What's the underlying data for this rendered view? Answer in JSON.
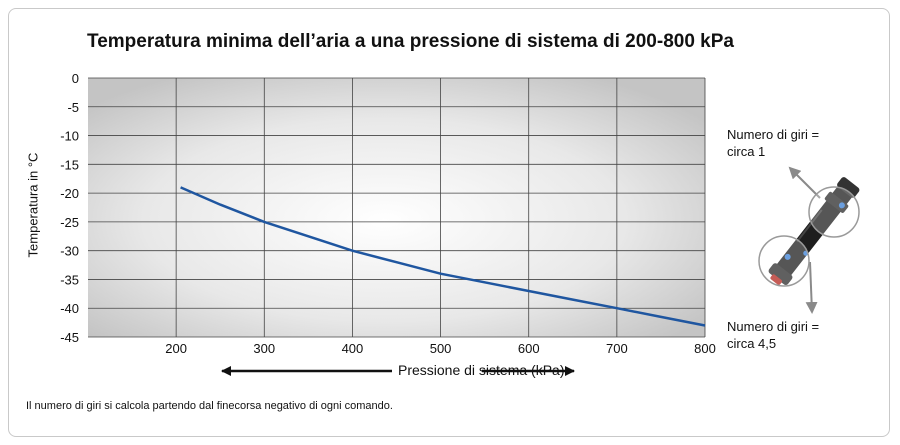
{
  "chart_data": {
    "type": "line",
    "title": "Temperatura minima dell’aria a una pressione di sistema di 200-800 kPa",
    "xlabel": "Pressione di sistema (kPa)",
    "ylabel": "Temperatura in °C",
    "x_ticks": [
      200,
      300,
      400,
      500,
      600,
      700,
      800
    ],
    "y_ticks": [
      0,
      -5,
      -10,
      -15,
      -20,
      -25,
      -30,
      -35,
      -40,
      -45
    ],
    "xlim": [
      100,
      800
    ],
    "ylim": [
      -45,
      0
    ],
    "grid": true,
    "series": [
      {
        "x": [
          205,
          250,
          300,
          360,
          400,
          450,
          500,
          550,
          600,
          650,
          700,
          750,
          800
        ],
        "y": [
          -19,
          -22,
          -25,
          -28,
          -30,
          -32,
          -34,
          -35.5,
          -37,
          -38.5,
          -40,
          -41.5,
          -43
        ]
      }
    ]
  },
  "note": "Il numero di giri si calcola partendo dal finecorsa negativo di ogni comando.",
  "side_labels": {
    "top_line1": "Numero di giri =",
    "top_line2": "circa 1",
    "bottom_line1": "Numero di giri =",
    "bottom_line2": "circa 4,5"
  },
  "colors": {
    "line": "#1f56a0",
    "grid": "#444444",
    "arrow": "#111111",
    "pointer_arrow": "#888888"
  },
  "icons": [
    "rotary-actuator-icon",
    "turn-circle-icon"
  ]
}
